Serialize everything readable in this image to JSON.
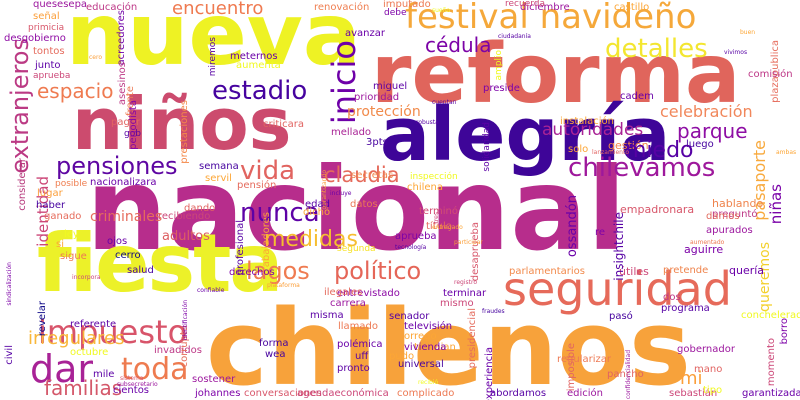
{
  "colors": {
    "background": "#ffffff",
    "palette": [
      "#0d0887",
      "#5c01a6",
      "#9c179e",
      "#cc4778",
      "#ed7953",
      "#fb9f3a",
      "#f0f921"
    ]
  },
  "words": [
    {
      "text": "nacional",
      "color": "#b72d8c"
    },
    {
      "text": "chilenos",
      "color": "#f7a23b"
    },
    {
      "text": "reforma",
      "color": "#e0655c"
    },
    {
      "text": "nueva",
      "color": "#eef224"
    },
    {
      "text": "alegría",
      "color": "#3e0598"
    },
    {
      "text": "niños",
      "color": "#cc4b6e"
    },
    {
      "text": "fiesta",
      "color": "#ecf129"
    },
    {
      "text": "seguridad",
      "color": "#e66a5a"
    },
    {
      "text": "festival navideño",
      "color": "#f5a83a"
    },
    {
      "text": "extranjeros",
      "color": "#bb3a84"
    },
    {
      "text": "impuesto",
      "color": "#d8546a"
    },
    {
      "text": "pensiones",
      "color": "#5e06a2"
    },
    {
      "text": "estadio",
      "color": "#46039f"
    },
    {
      "text": "inicio",
      "color": "#6e00a8"
    },
    {
      "text": "toda",
      "color": "#ee7b4f"
    },
    {
      "text": "dar",
      "color": "#a82296"
    },
    {
      "text": "nunca",
      "color": "#5d01a6"
    },
    {
      "text": "vida",
      "color": "#e16460"
    },
    {
      "text": "claudia",
      "color": "#e56a5b"
    },
    {
      "text": "chilevamos",
      "color": "#9e189c"
    },
    {
      "text": "medidas",
      "color": "#f6be30"
    },
    {
      "text": "lagos",
      "color": "#ef7b51"
    },
    {
      "text": "político",
      "color": "#e56658"
    },
    {
      "text": "detalles",
      "color": "#f3e630"
    },
    {
      "text": "cédula",
      "color": "#7c03a7"
    },
    {
      "text": "parque",
      "color": "#8e0ea4"
    },
    {
      "text": "espacio",
      "color": "#ef7b51"
    },
    {
      "text": "encuentro",
      "color": "#ef7a50"
    },
    {
      "text": "familias",
      "color": "#d4586a"
    },
    {
      "text": "irregulares",
      "color": "#f9b73a"
    },
    {
      "text": "autoridades",
      "color": "#a92395"
    },
    {
      "text": "celebración",
      "color": "#f1875b"
    },
    {
      "text": "protección",
      "color": "#f18a4a"
    },
    {
      "text": "pasaporte",
      "color": "#f8a93c"
    },
    {
      "text": "identidad",
      "color": "#cc4778"
    },
    {
      "text": "niñas",
      "color": "#7a02a8"
    },
    {
      "text": "queremos",
      "color": "#f3d02c"
    },
    {
      "text": "adultos",
      "color": "#dd5f62"
    },
    {
      "text": "entrevistado",
      "color": "#8c0aa5"
    },
    {
      "text": "parlamentarios",
      "color": "#f28a4c"
    },
    {
      "text": "útiles",
      "color": "#cc4778"
    },
    {
      "text": "pretende",
      "color": "#ef844d"
    },
    {
      "text": "quería",
      "color": "#6a00a8"
    },
    {
      "text": "ossandón",
      "color": "#6a00a8"
    },
    {
      "text": "aguirre",
      "color": "#7c02a8"
    },
    {
      "text": "luego",
      "color": "#46039f"
    },
    {
      "text": "gestión",
      "color": "#f1864e"
    },
    {
      "text": "hablando",
      "color": "#ef844d"
    },
    {
      "text": "preguntó",
      "color": "#bd3786"
    },
    {
      "text": "damos",
      "color": "#e16a5d"
    },
    {
      "text": "apurados",
      "color": "#9c179e"
    },
    {
      "text": "empadronara",
      "color": "#d8576b"
    },
    {
      "text": "terminó",
      "color": "#d24d73"
    },
    {
      "text": "título",
      "color": "#e4695e"
    },
    {
      "text": "datos",
      "color": "#eb7655"
    },
    {
      "text": "edad",
      "color": "#5601a4"
    },
    {
      "text": "aprueba",
      "color": "#7d03a8"
    },
    {
      "text": "segunda",
      "color": "#f7e225"
    },
    {
      "text": "desaprueba",
      "color": "#d8576b"
    },
    {
      "text": "secretas",
      "color": "#f1844b"
    },
    {
      "text": "3pts",
      "color": "#47039f"
    },
    {
      "text": "mellado",
      "color": "#a92395"
    },
    {
      "text": "criticara",
      "color": "#e16462"
    },
    {
      "text": "miguel",
      "color": "#5c01a6"
    },
    {
      "text": "prioridad",
      "color": "#9c179e"
    },
    {
      "text": "preside",
      "color": "#7e03a8"
    },
    {
      "text": "instalación",
      "color": "#fca636"
    },
    {
      "text": "cadem",
      "color": "#6a00a8"
    },
    {
      "text": "plazapublica",
      "color": "#e66c5c"
    },
    {
      "text": "comisión",
      "color": "#bd3786"
    },
    {
      "text": "miedo",
      "color": "#5601a4"
    },
    {
      "text": "castillo",
      "color": "#fca636"
    },
    {
      "text": "diciembre",
      "color": "#9c179e"
    },
    {
      "text": "renovación",
      "color": "#ef7e50"
    },
    {
      "text": "imputado",
      "color": "#ed7953"
    },
    {
      "text": "debe",
      "color": "#7e03a8"
    },
    {
      "text": "recuerda",
      "color": "#cc4778"
    },
    {
      "text": "educación",
      "color": "#bd3786"
    },
    {
      "text": "quesesepa",
      "color": "#9c179e"
    },
    {
      "text": "señal",
      "color": "#fb9f3a"
    },
    {
      "text": "primicia",
      "color": "#d8576b"
    },
    {
      "text": "desgobierno",
      "color": "#8f0da4"
    },
    {
      "text": "tontos",
      "color": "#e56b5d"
    },
    {
      "text": "junto",
      "color": "#5c01a6"
    },
    {
      "text": "aprueba",
      "color": "#cc4778"
    },
    {
      "text": "acreedores",
      "color": "#6f00a8"
    },
    {
      "text": "asesinos",
      "color": "#bd3786"
    },
    {
      "text": "frente",
      "color": "#ed7953"
    },
    {
      "text": "pagar",
      "color": "#e16462"
    },
    {
      "text": "gob",
      "color": "#5601a4"
    },
    {
      "text": "periodista",
      "color": "#8606a6"
    },
    {
      "text": "prestaciones",
      "color": "#f48849"
    },
    {
      "text": "meternos",
      "color": "#6a00a8"
    },
    {
      "text": "aumenta",
      "color": "#f0f921"
    },
    {
      "text": "avanzar",
      "color": "#6a00a8"
    },
    {
      "text": "miremos",
      "color": "#5601a4"
    },
    {
      "text": "solidaridad",
      "color": "#5c01a6"
    },
    {
      "text": "amplio",
      "color": "#f0f921"
    },
    {
      "text": "semana",
      "color": "#46039f"
    },
    {
      "text": "servil",
      "color": "#fca636"
    },
    {
      "text": "nacionalizara",
      "color": "#6a00a8"
    },
    {
      "text": "pensión",
      "color": "#e56b5d"
    },
    {
      "text": "dando",
      "color": "#e16462"
    },
    {
      "text": "recibiendo",
      "color": "#cc4778"
    },
    {
      "text": "profesional",
      "color": "#5601a4"
    },
    {
      "text": "trabajadores",
      "color": "#fca636"
    },
    {
      "text": "derechos",
      "color": "#7e03a8"
    },
    {
      "text": "cerro",
      "color": "#0d0887"
    },
    {
      "text": "ojos",
      "color": "#6a00a8"
    },
    {
      "text": "haber",
      "color": "#46039f"
    },
    {
      "text": "ganado",
      "color": "#e66c5c"
    },
    {
      "text": "lugar",
      "color": "#fb9f3a"
    },
    {
      "text": "considerar",
      "color": "#b5367a"
    },
    {
      "text": "posible",
      "color": "#ef7e50"
    },
    {
      "text": "sigue",
      "color": "#ed7953"
    },
    {
      "text": "si",
      "color": "#fca636"
    },
    {
      "text": "ley",
      "color": "#f0f921"
    },
    {
      "text": "criminales",
      "color": "#e66c5c"
    },
    {
      "text": "salud",
      "color": "#46039f"
    },
    {
      "text": "revelar",
      "color": "#0d0887"
    },
    {
      "text": "referente",
      "color": "#5c01a6"
    },
    {
      "text": "invadidos",
      "color": "#bd3786"
    },
    {
      "text": "octubre",
      "color": "#f0f921"
    },
    {
      "text": "corrupta",
      "color": "#e66c5c"
    },
    {
      "text": "cientos",
      "color": "#6a00a8"
    },
    {
      "text": "mile",
      "color": "#5c01a6"
    },
    {
      "text": "sostener",
      "color": "#9c179e"
    },
    {
      "text": "johannes",
      "color": "#7e03a8"
    },
    {
      "text": "conversaciones",
      "color": "#d8576b"
    },
    {
      "text": "agendaeconómica",
      "color": "#cc4778"
    },
    {
      "text": "complicado",
      "color": "#ed7953"
    },
    {
      "text": "abordamos",
      "color": "#5601a4"
    },
    {
      "text": "edición",
      "color": "#9c179e"
    },
    {
      "text": "sebastián",
      "color": "#cc4778"
    },
    {
      "text": "garantizada",
      "color": "#6a00a8"
    },
    {
      "text": "borro",
      "color": "#7e03a8"
    },
    {
      "text": "momento",
      "color": "#cc4778"
    },
    {
      "text": "mano",
      "color": "#e16462"
    },
    {
      "text": "gobernador",
      "color": "#9c179e"
    },
    {
      "text": "concheleradio",
      "color": "#f0f921"
    },
    {
      "text": "programa",
      "color": "#5601a4"
    },
    {
      "text": "pasó",
      "color": "#46039f"
    },
    {
      "text": "pancho",
      "color": "#e16462"
    },
    {
      "text": "regularizar",
      "color": "#ed7953"
    },
    {
      "text": "imposible",
      "color": "#e16462"
    },
    {
      "text": "experiencia",
      "color": "#6a00a8"
    },
    {
      "text": "presidencial",
      "color": "#e56b5d"
    },
    {
      "text": "trabajan",
      "color": "#fca636"
    },
    {
      "text": "universal",
      "color": "#47039f"
    },
    {
      "text": "pudo",
      "color": "#fca636"
    },
    {
      "text": "uff",
      "color": "#5601a4"
    },
    {
      "text": "pronto",
      "color": "#5c01a6"
    },
    {
      "text": "polémica",
      "color": "#6a00a8"
    },
    {
      "text": "orrego",
      "color": "#fca636"
    },
    {
      "text": "vivienda",
      "color": "#7e03a8"
    },
    {
      "text": "senador",
      "color": "#5601a4"
    },
    {
      "text": "forma",
      "color": "#46039f"
    },
    {
      "text": "wea",
      "color": "#47039f"
    },
    {
      "text": "llamado",
      "color": "#ed7953"
    },
    {
      "text": "misma",
      "color": "#5c01a6"
    },
    {
      "text": "ilegales",
      "color": "#e56b5d"
    },
    {
      "text": "carrera",
      "color": "#9c179e"
    },
    {
      "text": "terminar",
      "color": "#6a00a8"
    },
    {
      "text": "mismo",
      "color": "#cc4778"
    },
    {
      "text": "televisión",
      "color": "#6a00a8"
    },
    {
      "text": "chilena",
      "color": "#fca636"
    },
    {
      "text": "inspección",
      "color": "#f0f921"
    },
    {
      "text": "solo",
      "color": "#fca636"
    },
    {
      "text": "re",
      "color": "#7e03a8"
    },
    {
      "text": "insightchile",
      "color": "#5601a4"
    },
    {
      "text": "mi",
      "color": "#fb9f3a"
    },
    {
      "text": "dos",
      "color": "#bd3786"
    },
    {
      "text": "tipo",
      "color": "#f0f921"
    },
    {
      "text": "dicho",
      "color": "#fca636"
    },
    {
      "text": "incorpora",
      "color": "#cc4778"
    },
    {
      "text": "confiable",
      "color": "#6a00a8"
    },
    {
      "text": "identificación",
      "color": "#7e03a8"
    },
    {
      "text": "sistema",
      "color": "#d8576b"
    },
    {
      "text": "subsecretario",
      "color": "#9c179e"
    },
    {
      "text": "fraudes",
      "color": "#46039f"
    },
    {
      "text": "cuentan",
      "color": "#5601a4"
    },
    {
      "text": "sueño",
      "color": "#f0f921"
    },
    {
      "text": "tecnología",
      "color": "#5601a4"
    },
    {
      "text": "participar",
      "color": "#fb9f3a"
    },
    {
      "text": "confidencialidad",
      "color": "#9c179e"
    },
    {
      "text": "aumentado",
      "color": "#ed7953"
    },
    {
      "text": "tres",
      "color": "#cc4778"
    },
    {
      "text": "entregado",
      "color": "#fca636"
    },
    {
      "text": "incluye",
      "color": "#6a00a8"
    },
    {
      "text": "plataforma",
      "color": "#fb9f3a"
    },
    {
      "text": "sindicalización",
      "color": "#7e03a8"
    },
    {
      "text": "robusta",
      "color": "#5601a4"
    },
    {
      "text": "registro",
      "color": "#cc4778"
    },
    {
      "text": "garantizando",
      "color": "#fb9f3a"
    },
    {
      "text": "lanzamiento",
      "color": "#e16462"
    },
    {
      "text": "ciudadanía",
      "color": "#5601a4"
    },
    {
      "text": "buen",
      "color": "#fca636"
    },
    {
      "text": "recibió",
      "color": "#f0f921"
    },
    {
      "text": "cero",
      "color": "#fb9f3a"
    },
    {
      "text": "vivimos",
      "color": "#5601a4"
    },
    {
      "text": "ambas",
      "color": "#fca636"
    },
    {
      "text": "civil",
      "color": "#5601a4"
    },
    {
      "text": "puranoticia",
      "color": "#46039f"
    }
  ]
}
